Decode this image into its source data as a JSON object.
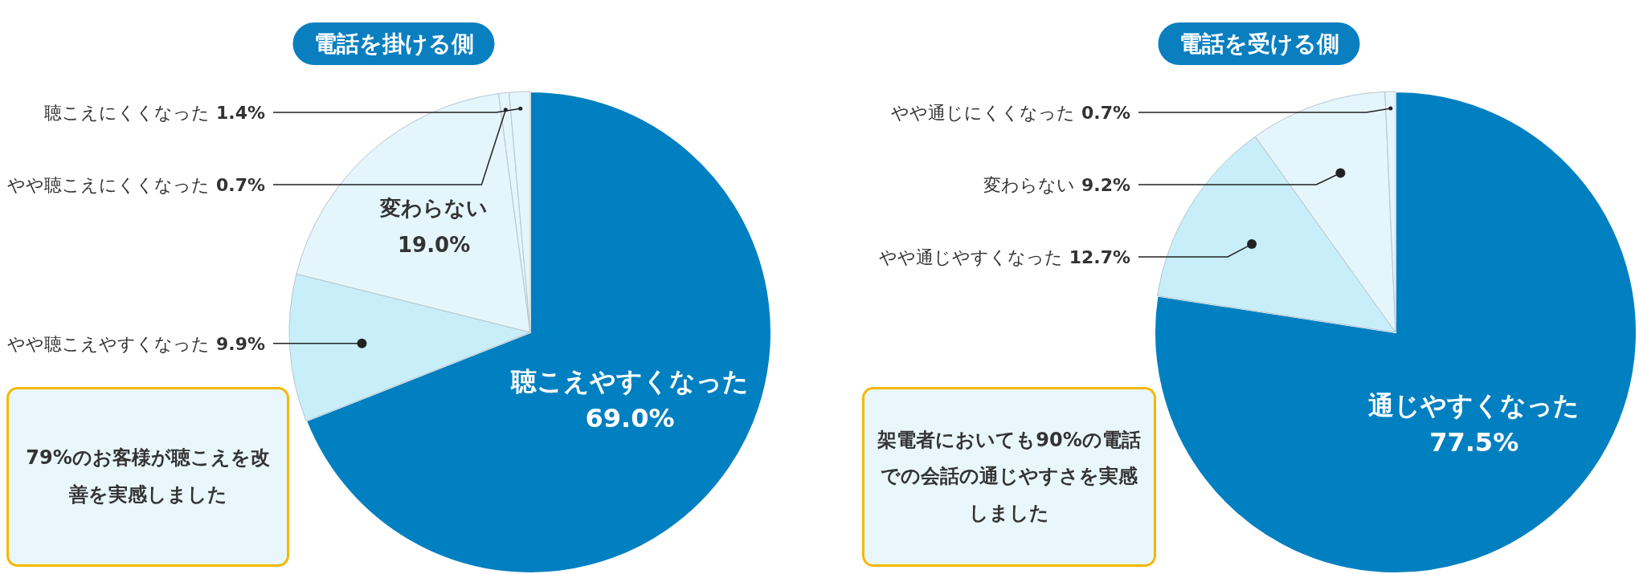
{
  "chart_data": [
    {
      "type": "pie",
      "title": "電話を掛ける側",
      "categories": [
        "聴こえやすくなった",
        "やや聴こえやすくなった",
        "変わらない",
        "やや聴こえにくくなった",
        "聴こえにくくなった"
      ],
      "values": [
        69.0,
        9.9,
        19.0,
        0.7,
        1.4
      ],
      "value_labels": [
        "69.0%",
        "9.9%",
        "19.0%",
        "0.7%",
        "1.4%"
      ],
      "colors": [
        "#0080c0",
        "#c8eff9",
        "#e4f6fc",
        "#e4f6fc",
        "#e4f6fc"
      ],
      "annotations": [
        "79%のお客様が聴こえを改善を実感しました"
      ]
    },
    {
      "type": "pie",
      "title": "電話を受ける側",
      "categories": [
        "通じやすくなった",
        "やや通じやすくなった",
        "変わらない",
        "やや通じにくくなった"
      ],
      "values": [
        77.5,
        12.7,
        9.2,
        0.7
      ],
      "value_labels": [
        "77.5%",
        "12.7%",
        "9.2%",
        "0.7%"
      ],
      "colors": [
        "#0080c0",
        "#c8eff9",
        "#e4f6fc",
        "#e4f6fc"
      ],
      "annotations": [
        "架電者においても90%の電話での会話の通じやすさを実感しました"
      ]
    }
  ]
}
